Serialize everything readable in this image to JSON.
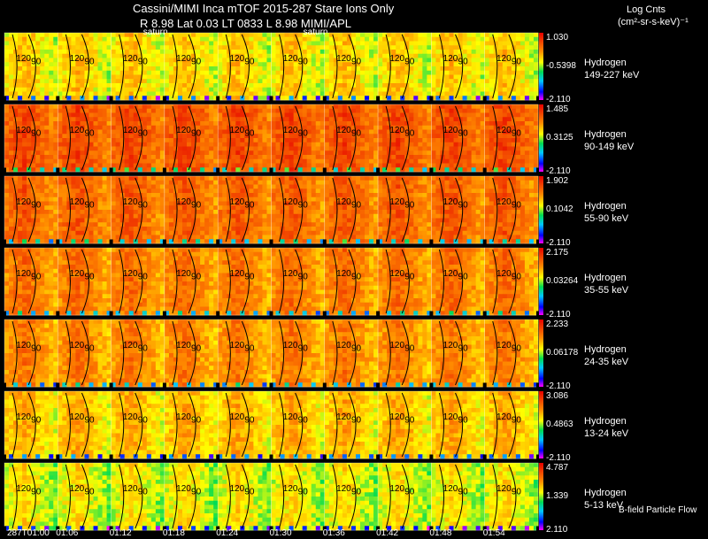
{
  "header": {
    "line1": "Cassini/MIMI Inca mTOF  2015-287    Stare    Ions Only",
    "line2": "R         8.98 Lat 0.03 LT 0833 L           8.98  MIMI/APL"
  },
  "colorbar_title": "Log Cnts",
  "colorbar_units": "(cm²-sr-s-keV)⁻¹",
  "footer_note": "B-field Particle Flow",
  "chart_data": {
    "type": "heatmap",
    "title": "Cassini/MIMI Inca mTOF 2015-287 Stare Ions Only",
    "frame_label": "saturn",
    "frame_labels_drawn_above": [
      2,
      5
    ],
    "contour_labels": [
      "120",
      "90"
    ],
    "time_labels": [
      "287T01:00",
      "01:06",
      "01:12",
      "01:18",
      "01:24",
      "01:30",
      "01:36",
      "01:42",
      "01:48",
      "01:54"
    ],
    "frames": 10,
    "panels": [
      {
        "species": "Hydrogen",
        "energy": "149-227 keV",
        "max": "1.030",
        "mid": "-0.5398",
        "min": "-2.110",
        "level": 0.66
      },
      {
        "species": "Hydrogen",
        "energy": "90-149 keV",
        "max": "1.485",
        "mid": "0.3125",
        "min": "-2.110",
        "level": 0.88
      },
      {
        "species": "Hydrogen",
        "energy": "55-90 keV",
        "max": "1.902",
        "mid": "0.1042",
        "min": "-2.110",
        "level": 0.84
      },
      {
        "species": "Hydrogen",
        "energy": "35-55 keV",
        "max": "2.175",
        "mid": "0.03264",
        "min": "-2.110",
        "level": 0.8
      },
      {
        "species": "Hydrogen",
        "energy": "24-35 keV",
        "max": "2.233",
        "mid": "0.06178",
        "min": "-2.110",
        "level": 0.78
      },
      {
        "species": "Hydrogen",
        "energy": "13-24 keV",
        "max": "3.086",
        "mid": "0.4863",
        "min": "-2.110",
        "level": 0.7
      },
      {
        "species": "Hydrogen",
        "energy": "5-13 keV",
        "max": "4.787",
        "mid": "1.339",
        "min": "2.110",
        "level": 0.62
      }
    ]
  }
}
